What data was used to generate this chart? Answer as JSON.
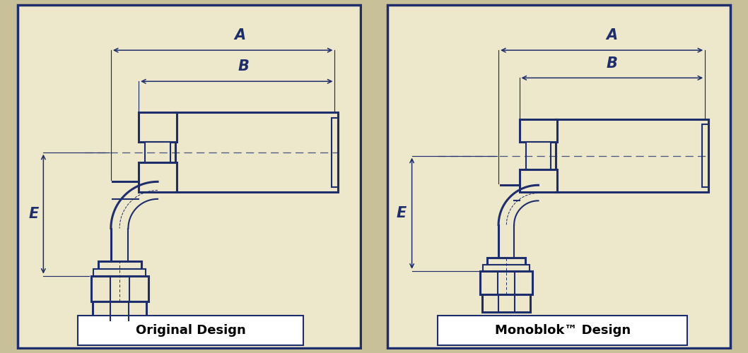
{
  "bg_color": "#ede8cc",
  "border_color": "#1e2d6b",
  "line_color": "#1e2d6b",
  "fig_bg": "#c8c098",
  "label_left": "Original Design",
  "label_right": "Monoblok™ Design",
  "dim_A": "A",
  "dim_B": "B",
  "dim_E": "E",
  "lw_thick": 2.2,
  "lw_medium": 1.5,
  "lw_thin": 1.0,
  "lw_dim": 1.1
}
